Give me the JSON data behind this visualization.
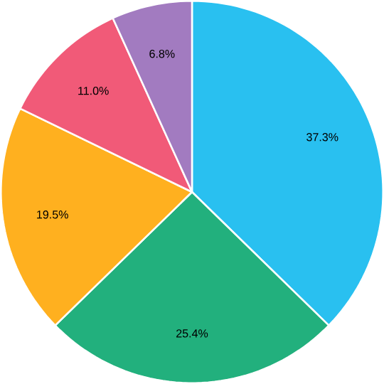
{
  "chart_data": {
    "type": "pie",
    "categories": [
      null,
      null,
      null,
      null,
      null
    ],
    "values": [
      37.3,
      25.4,
      19.5,
      11.0,
      6.8
    ],
    "value_labels": [
      "37.3%",
      "25.4%",
      "19.5%",
      "11.0%",
      "6.8%"
    ],
    "colors": [
      "#29c0f0",
      "#22b07d",
      "#ffb01f",
      "#f15a78",
      "#a27bc0"
    ]
  }
}
